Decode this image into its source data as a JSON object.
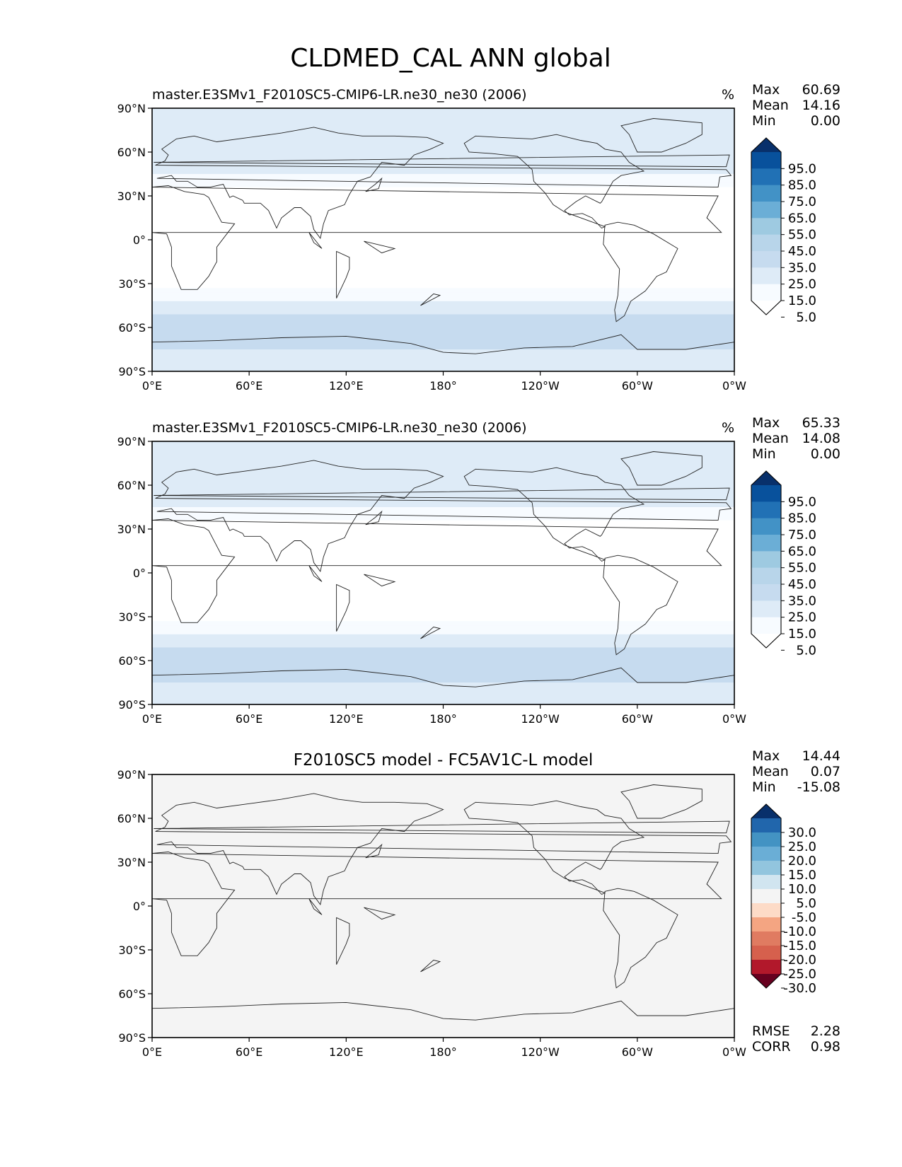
{
  "figure": {
    "title": "CLDMED_CAL ANN global"
  },
  "chart_data": [
    {
      "type": "heatmap",
      "panel": "test",
      "title": "master.E3SMv1_F2010SC5-CMIP6-LR.ne30_ne30 (2006)",
      "units": "%",
      "stats": [
        {
          "label": "Max",
          "value": "60.69"
        },
        {
          "label": "Mean",
          "value": "14.16"
        },
        {
          "label": "Min",
          "value": "0.00"
        }
      ],
      "x_ticks": [
        "0°E",
        "60°E",
        "120°E",
        "180°",
        "120°W",
        "60°W",
        "0°W"
      ],
      "y_ticks": [
        "90°N",
        "60°N",
        "30°N",
        "0°",
        "30°S",
        "60°S",
        "90°S"
      ],
      "xlim": [
        0,
        360
      ],
      "ylim": [
        -90,
        90
      ],
      "colorbar": {
        "labels": [
          "95.0",
          "85.0",
          "75.0",
          "65.0",
          "55.0",
          "45.0",
          "35.0",
          "25.0",
          "15.0",
          "5.0"
        ],
        "colors": [
          "#08306b",
          "#08519c",
          "#2171b5",
          "#4292c6",
          "#6baed6",
          "#9ecae1",
          "#b8d5ea",
          "#c6dbef",
          "#deebf7",
          "#f7fbff",
          "#ffffff"
        ],
        "extend": "both"
      },
      "zonal_profile": [
        {
          "lat": -90,
          "value": 30
        },
        {
          "lat": -78,
          "value": 32
        },
        {
          "lat": -70,
          "value": 38
        },
        {
          "lat": -60,
          "value": 40
        },
        {
          "lat": -48,
          "value": 33
        },
        {
          "lat": -40,
          "value": 22
        },
        {
          "lat": -30,
          "value": 10
        },
        {
          "lat": -20,
          "value": 6
        },
        {
          "lat": -10,
          "value": 10
        },
        {
          "lat": 0,
          "value": 15
        },
        {
          "lat": 10,
          "value": 12
        },
        {
          "lat": 20,
          "value": 6
        },
        {
          "lat": 30,
          "value": 10
        },
        {
          "lat": 40,
          "value": 20
        },
        {
          "lat": 50,
          "value": 28
        },
        {
          "lat": 60,
          "value": 33
        },
        {
          "lat": 70,
          "value": 32
        },
        {
          "lat": 90,
          "value": 30
        }
      ]
    },
    {
      "type": "heatmap",
      "panel": "reference",
      "title": "master.E3SMv1_F2010SC5-CMIP6-LR.ne30_ne30 (2006)",
      "units": "%",
      "stats": [
        {
          "label": "Max",
          "value": "65.33"
        },
        {
          "label": "Mean",
          "value": "14.08"
        },
        {
          "label": "Min",
          "value": "0.00"
        }
      ],
      "x_ticks": [
        "0°E",
        "60°E",
        "120°E",
        "180°",
        "120°W",
        "60°W",
        "0°W"
      ],
      "y_ticks": [
        "90°N",
        "60°N",
        "30°N",
        "0°",
        "30°S",
        "60°S",
        "90°S"
      ],
      "xlim": [
        0,
        360
      ],
      "ylim": [
        -90,
        90
      ],
      "colorbar": {
        "labels": [
          "95.0",
          "85.0",
          "75.0",
          "65.0",
          "55.0",
          "45.0",
          "35.0",
          "25.0",
          "15.0",
          "5.0"
        ],
        "colors": [
          "#08306b",
          "#08519c",
          "#2171b5",
          "#4292c6",
          "#6baed6",
          "#9ecae1",
          "#b8d5ea",
          "#c6dbef",
          "#deebf7",
          "#f7fbff",
          "#ffffff"
        ],
        "extend": "both"
      },
      "zonal_profile": [
        {
          "lat": -90,
          "value": 30
        },
        {
          "lat": -78,
          "value": 33
        },
        {
          "lat": -70,
          "value": 37
        },
        {
          "lat": -60,
          "value": 41
        },
        {
          "lat": -48,
          "value": 33
        },
        {
          "lat": -40,
          "value": 22
        },
        {
          "lat": -30,
          "value": 10
        },
        {
          "lat": -20,
          "value": 6
        },
        {
          "lat": -10,
          "value": 10
        },
        {
          "lat": 0,
          "value": 15
        },
        {
          "lat": 10,
          "value": 12
        },
        {
          "lat": 20,
          "value": 6
        },
        {
          "lat": 30,
          "value": 10
        },
        {
          "lat": 40,
          "value": 20
        },
        {
          "lat": 50,
          "value": 29
        },
        {
          "lat": 60,
          "value": 34
        },
        {
          "lat": 70,
          "value": 32
        },
        {
          "lat": 90,
          "value": 30
        }
      ]
    },
    {
      "type": "heatmap",
      "panel": "difference",
      "title": "F2010SC5 model - FC5AV1C-L model",
      "units": "",
      "stats": [
        {
          "label": "Max",
          "value": "14.44"
        },
        {
          "label": "Mean",
          "value": "0.07"
        },
        {
          "label": "Min",
          "value": "-15.08"
        }
      ],
      "metrics": [
        {
          "label": "RMSE",
          "value": "2.28"
        },
        {
          "label": "CORR",
          "value": "0.98"
        }
      ],
      "x_ticks": [
        "0°E",
        "60°E",
        "120°E",
        "180°",
        "120°W",
        "60°W",
        "0°W"
      ],
      "y_ticks": [
        "90°N",
        "60°N",
        "30°N",
        "0°",
        "30°S",
        "60°S",
        "90°S"
      ],
      "xlim": [
        0,
        360
      ],
      "ylim": [
        -90,
        90
      ],
      "colorbar": {
        "labels": [
          "30.0",
          "25.0",
          "20.0",
          "15.0",
          "10.0",
          "5.0",
          "-5.0",
          "-10.0",
          "-15.0",
          "-20.0",
          "-25.0",
          "-30.0"
        ],
        "colors": [
          "#08306b",
          "#2166ac",
          "#4393c3",
          "#6aaed6",
          "#92c5de",
          "#d1e5f0",
          "#f4f4f4",
          "#fddbc7",
          "#f4a582",
          "#e07b61",
          "#d6604d",
          "#b2182b",
          "#67001f"
        ],
        "extend": "both"
      },
      "zonal_profile": [
        {
          "lat": -90,
          "value": -3
        },
        {
          "lat": -75,
          "value": -4
        },
        {
          "lat": -60,
          "value": 0
        },
        {
          "lat": 0,
          "value": 0
        },
        {
          "lat": 45,
          "value": 3
        },
        {
          "lat": 60,
          "value": 2
        },
        {
          "lat": 75,
          "value": -2
        },
        {
          "lat": 90,
          "value": 0
        }
      ]
    }
  ]
}
